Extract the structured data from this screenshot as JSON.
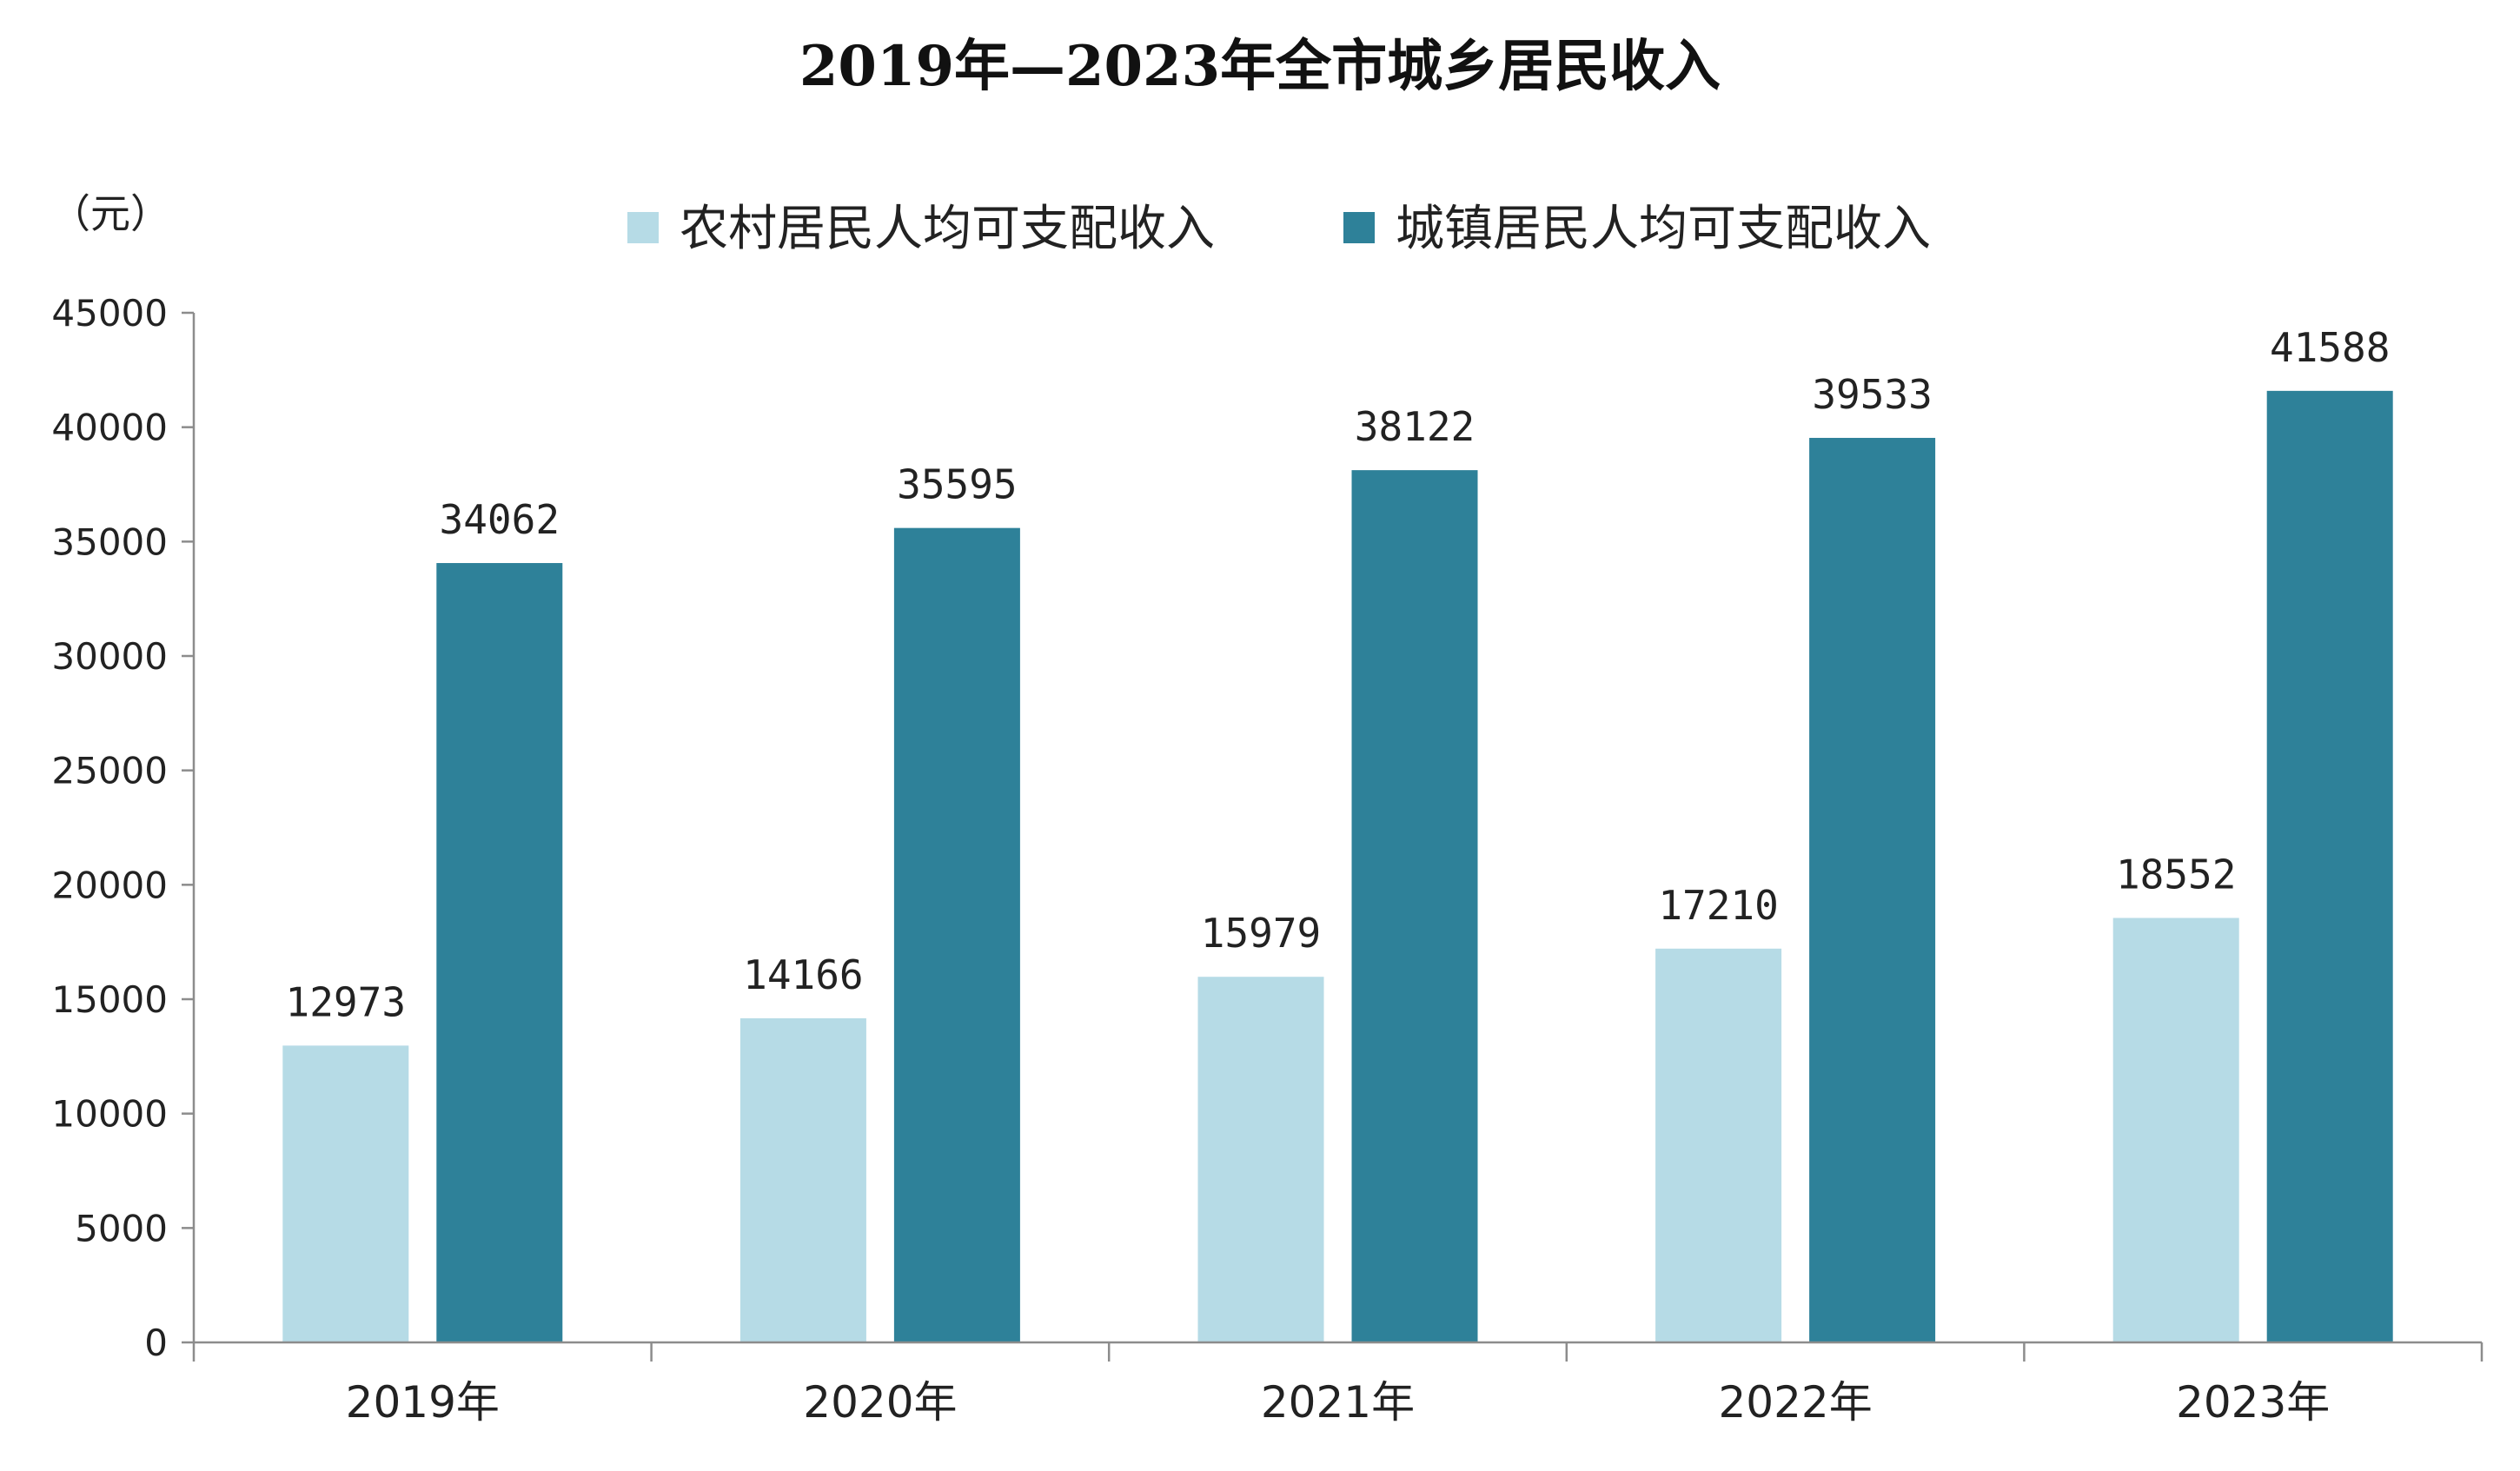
{
  "chart_data": {
    "type": "bar",
    "title": "2019年—2023年全市城乡居民收入",
    "unit_label": "（元）",
    "categories": [
      "2019年",
      "2020年",
      "2021年",
      "2022年",
      "2023年"
    ],
    "series": [
      {
        "name": "农村居民人均可支配收入",
        "color": "#b6dbe6",
        "values": [
          12973,
          14166,
          15979,
          17210,
          18552
        ]
      },
      {
        "name": "城镇居民人均可支配收入",
        "color": "#2e8199",
        "values": [
          34062,
          35595,
          38122,
          39533,
          41588
        ]
      }
    ],
    "yticks": [
      "0",
      "5000",
      "10000",
      "15000",
      "20000",
      "25000",
      "30000",
      "35000",
      "40000",
      "45000"
    ],
    "ylim": [
      0,
      45000
    ],
    "grid": false,
    "legend_position": "top",
    "axis_color": "#8c8c8c"
  }
}
